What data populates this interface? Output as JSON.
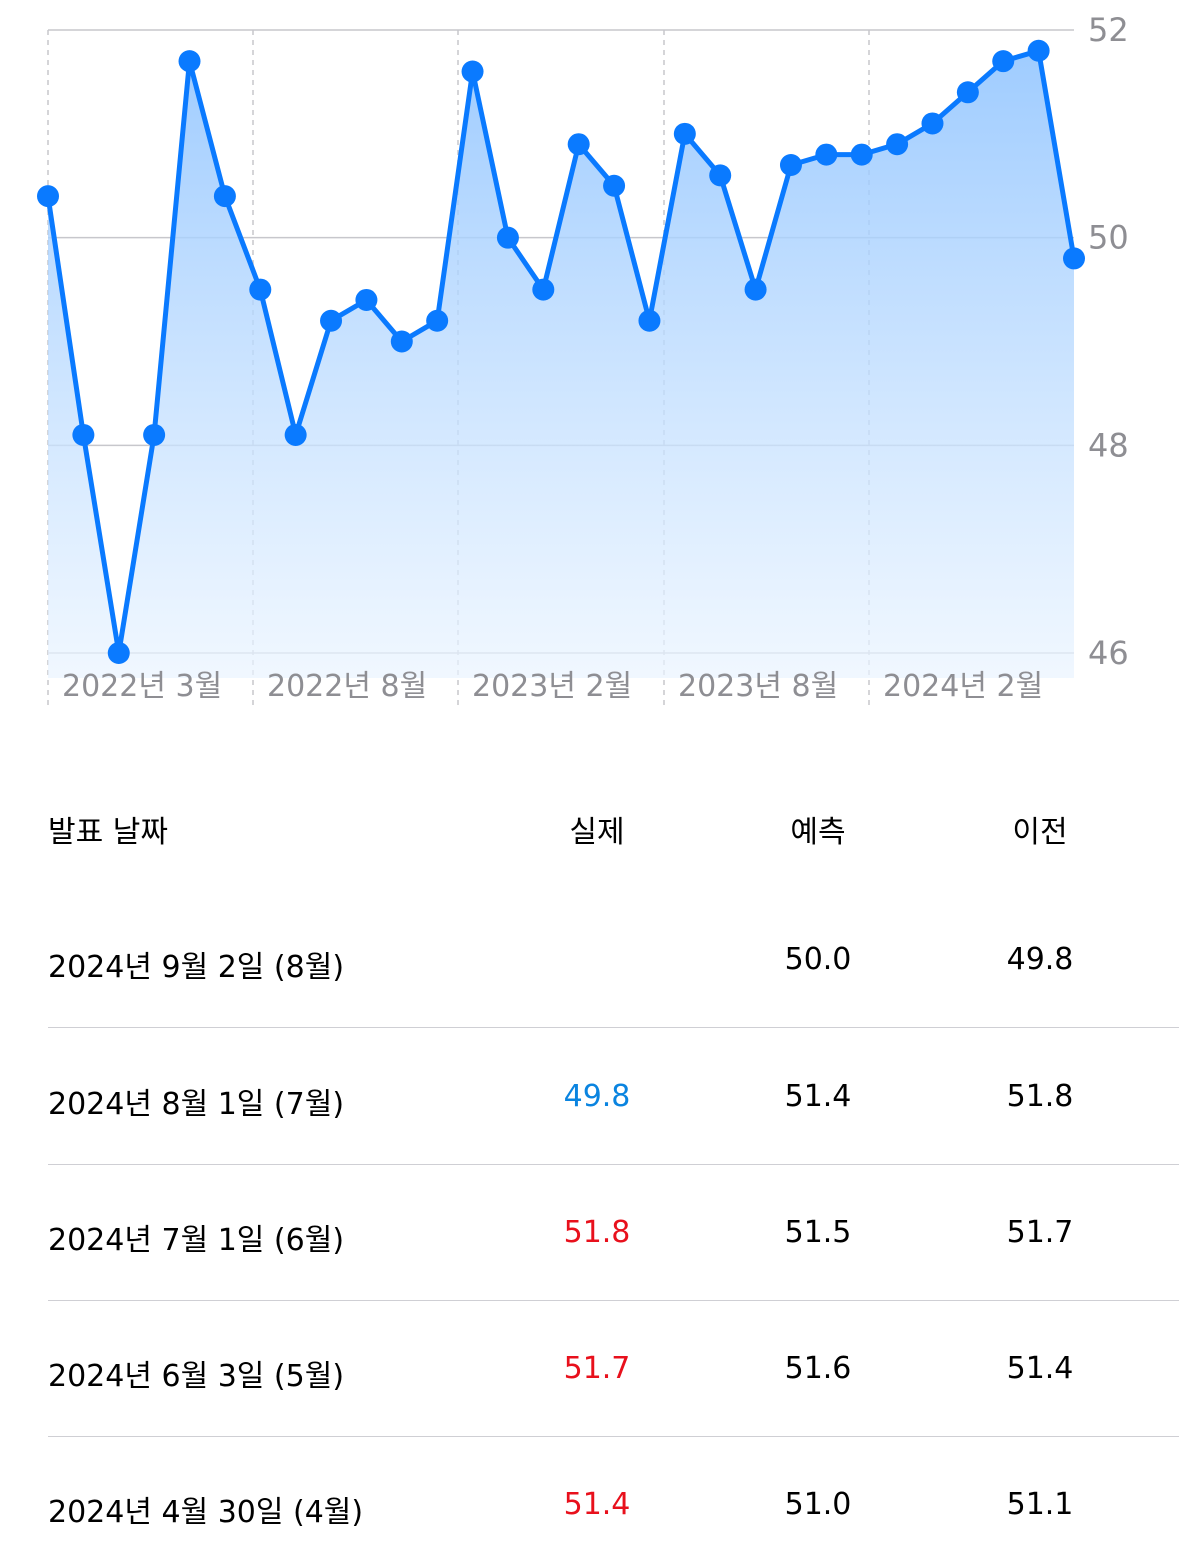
{
  "colors": {
    "line": "#0a7aff",
    "actual_down": "#0a84e0",
    "actual_up": "#e8101c",
    "axis_text": "#8e8e93",
    "grid": "#c7c7cc"
  },
  "chart_data": {
    "type": "area",
    "title": "",
    "xlabel": "",
    "ylabel": "",
    "ylim": [
      46,
      52
    ],
    "yticks": [
      "52",
      "50",
      "48",
      "46"
    ],
    "y_axis_side": "right",
    "x_tick_labels": [
      "2022년 3월",
      "2022년 8월",
      "2023년 2월",
      "2023년 8월",
      "2024년 2월"
    ],
    "grid": true,
    "values": [
      50.4,
      48.1,
      46.0,
      48.1,
      51.7,
      50.4,
      49.5,
      48.1,
      49.2,
      49.4,
      49.0,
      49.2,
      51.6,
      50.0,
      49.5,
      50.9,
      50.5,
      49.2,
      51.0,
      50.6,
      49.5,
      50.7,
      50.8,
      50.8,
      50.9,
      51.1,
      51.4,
      51.7,
      51.8,
      49.8
    ]
  },
  "table": {
    "headers": {
      "date": "발표 날짜",
      "actual": "실제",
      "forecast": "예측",
      "previous": "이전"
    },
    "rows": [
      {
        "date": "2024년 9월 2일 (8월)",
        "actual": "",
        "actual_trend": "none",
        "forecast": "50.0",
        "previous": "49.8"
      },
      {
        "date": "2024년 8월 1일 (7월)",
        "actual": "49.8",
        "actual_trend": "down",
        "forecast": "51.4",
        "previous": "51.8"
      },
      {
        "date": "2024년 7월 1일 (6월)",
        "actual": "51.8",
        "actual_trend": "up",
        "forecast": "51.5",
        "previous": "51.7"
      },
      {
        "date": "2024년 6월 3일 (5월)",
        "actual": "51.7",
        "actual_trend": "up",
        "forecast": "51.6",
        "previous": "51.4"
      },
      {
        "date": "2024년 4월 30일 (4월)",
        "actual": "51.4",
        "actual_trend": "up",
        "forecast": "51.0",
        "previous": "51.1"
      }
    ]
  }
}
